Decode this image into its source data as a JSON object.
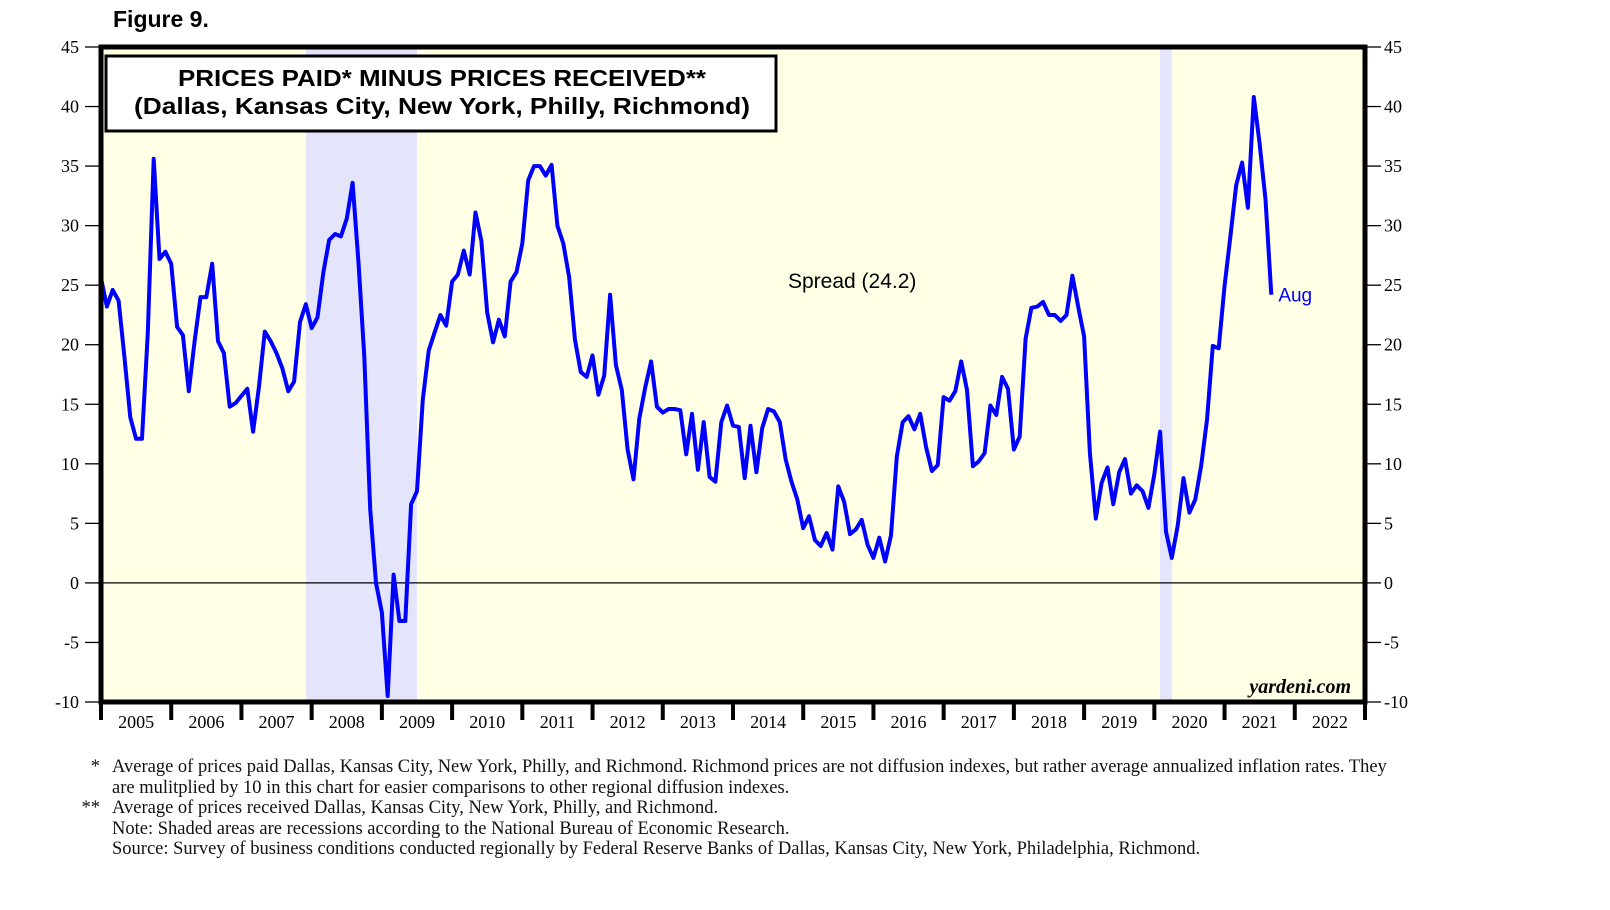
{
  "figure_label": "Figure 9.",
  "watermark": "yardeni.com",
  "colors": {
    "plot_bg": "#ffffe6",
    "recession": "#e4e4fb",
    "line": "#0000ff",
    "axis": "#000000"
  },
  "chart_data": {
    "type": "line",
    "title": "PRICES PAID* MINUS PRICES RECEIVED**",
    "subtitle": "(Dallas, Kansas City, New York, Philly, Richmond)",
    "series_label": "Spread (24.2)",
    "end_label": "Aug",
    "xlabel": "",
    "ylabel": "",
    "ylim": [
      -10,
      45
    ],
    "y_ticks": [
      -10,
      -5,
      0,
      5,
      10,
      15,
      20,
      25,
      30,
      35,
      40,
      45
    ],
    "y_tick_labels": [
      "-10",
      "-5",
      "0",
      "5",
      "10",
      "15",
      "20",
      "25",
      "30",
      "35",
      "40",
      "45"
    ],
    "x_range": [
      2005,
      2023
    ],
    "year_labels": [
      "2005",
      "2006",
      "2007",
      "2008",
      "2009",
      "2010",
      "2011",
      "2012",
      "2013",
      "2014",
      "2015",
      "2016",
      "2017",
      "2018",
      "2019",
      "2020",
      "2021",
      "2022"
    ],
    "reference_line": 0,
    "grid": false,
    "recessions": [
      {
        "start": 2007.92,
        "end": 2009.5
      },
      {
        "start": 2020.08,
        "end": 2020.25
      }
    ],
    "series": [
      {
        "name": "Spread",
        "start": 2005.0,
        "step": 0.08333,
        "values": [
          25.6,
          23.2,
          24.6,
          23.7,
          19.0,
          13.9,
          12.1,
          12.1,
          21.0,
          35.6,
          27.2,
          27.8,
          26.8,
          21.5,
          20.8,
          16.1,
          20.3,
          24.0,
          24.0,
          26.8,
          20.3,
          19.3,
          14.8,
          15.1,
          15.7,
          16.3,
          12.7,
          16.5,
          21.1,
          20.3,
          19.3,
          18.0,
          16.1,
          16.9,
          21.9,
          23.4,
          21.4,
          22.3,
          26.1,
          28.8,
          29.3,
          29.1,
          30.6,
          33.6,
          26.9,
          19.0,
          6.2,
          0.0,
          -2.5,
          -9.5,
          0.7,
          -3.2,
          -3.2,
          6.6,
          7.7,
          15.4,
          19.5,
          21.0,
          22.5,
          21.6,
          25.3,
          25.9,
          27.9,
          25.9,
          31.1,
          28.7,
          22.7,
          20.2,
          22.1,
          20.7,
          25.3,
          26.1,
          28.5,
          33.8,
          35.0,
          35.0,
          34.2,
          35.1,
          30.0,
          28.5,
          25.7,
          20.4,
          17.7,
          17.3,
          19.1,
          15.8,
          17.4,
          24.2,
          18.3,
          16.2,
          11.2,
          8.7,
          13.8,
          16.4,
          18.6,
          14.8,
          14.3,
          14.6,
          14.6,
          14.5,
          10.8,
          14.2,
          9.5,
          13.5,
          8.9,
          8.5,
          13.5,
          14.9,
          13.2,
          13.1,
          8.8,
          13.2,
          9.3,
          13.0,
          14.6,
          14.4,
          13.5,
          10.4,
          8.5,
          7.0,
          4.6,
          5.6,
          3.6,
          3.1,
          4.2,
          2.8,
          8.1,
          6.8,
          4.1,
          4.5,
          5.3,
          3.2,
          2.1,
          3.8,
          1.8,
          4.0,
          10.6,
          13.5,
          14.0,
          12.9,
          14.2,
          11.4,
          9.4,
          9.9,
          15.6,
          15.3,
          16.1,
          18.6,
          16.2,
          9.8,
          10.2,
          10.9,
          14.9,
          14.1,
          17.3,
          16.3,
          11.2,
          12.3,
          20.5,
          23.1,
          23.2,
          23.6,
          22.5,
          22.5,
          22.0,
          22.5,
          25.8,
          23.2,
          20.7,
          10.9,
          5.4,
          8.4,
          9.7,
          6.6,
          9.3,
          10.4,
          7.5,
          8.2,
          7.7,
          6.3,
          9.1,
          12.7,
          4.3,
          2.1,
          4.8,
          8.8,
          5.9,
          7.0,
          9.8,
          13.7,
          19.9,
          19.7,
          24.9,
          29.1,
          33.4,
          35.3,
          31.5,
          40.8,
          36.9,
          32.2,
          24.2
        ]
      }
    ]
  },
  "footnotes": [
    {
      "mark": "*",
      "text": "Average of prices paid Dallas, Kansas City, New York, Philly, and Richmond. Richmond prices are not diffusion indexes, but rather average annualized inflation rates. They are mulitplied by 10 in this chart for easier comparisons to other regional diffusion indexes."
    },
    {
      "mark": "**",
      "text": "Average of prices received Dallas, Kansas City, New York, Philly, and Richmond."
    },
    {
      "mark": "",
      "text": "Note: Shaded areas are recessions according to the National Bureau of Economic Research."
    },
    {
      "mark": "",
      "text": "Source: Survey of business conditions conducted regionally by Federal Reserve Banks of Dallas, Kansas City, New York, Philadelphia, Richmond."
    }
  ]
}
